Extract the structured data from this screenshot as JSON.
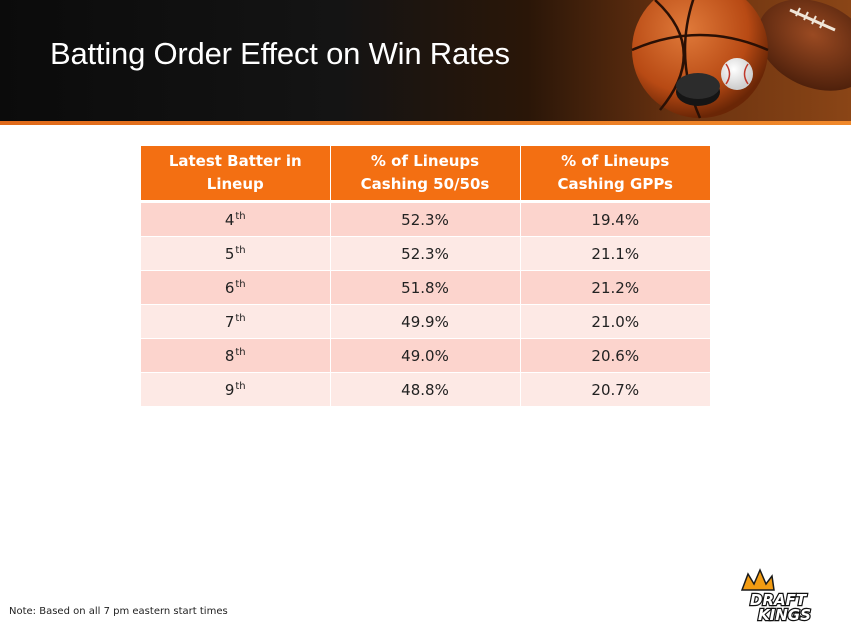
{
  "slide": {
    "title": "Batting Order Effect on Win Rates",
    "note": "Note: Based on all 7 pm eastern start times"
  },
  "table": {
    "headers": [
      "Latest Batter in Lineup",
      "% of Lineups Cashing 50/50s",
      "% of Lineups Cashing GPPs"
    ],
    "rows": [
      {
        "position": "4",
        "suffix": "th",
        "fifty_fifty": "52.3%",
        "gpp": "19.4%"
      },
      {
        "position": "5",
        "suffix": "th",
        "fifty_fifty": "52.3%",
        "gpp": "21.1%"
      },
      {
        "position": "6",
        "suffix": "th",
        "fifty_fifty": "51.8%",
        "gpp": "21.2%"
      },
      {
        "position": "7",
        "suffix": "th",
        "fifty_fifty": "49.9%",
        "gpp": "21.0%"
      },
      {
        "position": "8",
        "suffix": "th",
        "fifty_fifty": "49.0%",
        "gpp": "20.6%"
      },
      {
        "position": "9",
        "suffix": "th",
        "fifty_fifty": "48.8%",
        "gpp": "20.7%"
      }
    ]
  },
  "logo": {
    "text_line1": "DRAFT",
    "text_line2": "KINGS"
  },
  "colors": {
    "header_orange": "#f36f12",
    "row_dark": "#fcd4cd",
    "row_light": "#fde9e5",
    "banner_dark": "#0b0b0b"
  }
}
